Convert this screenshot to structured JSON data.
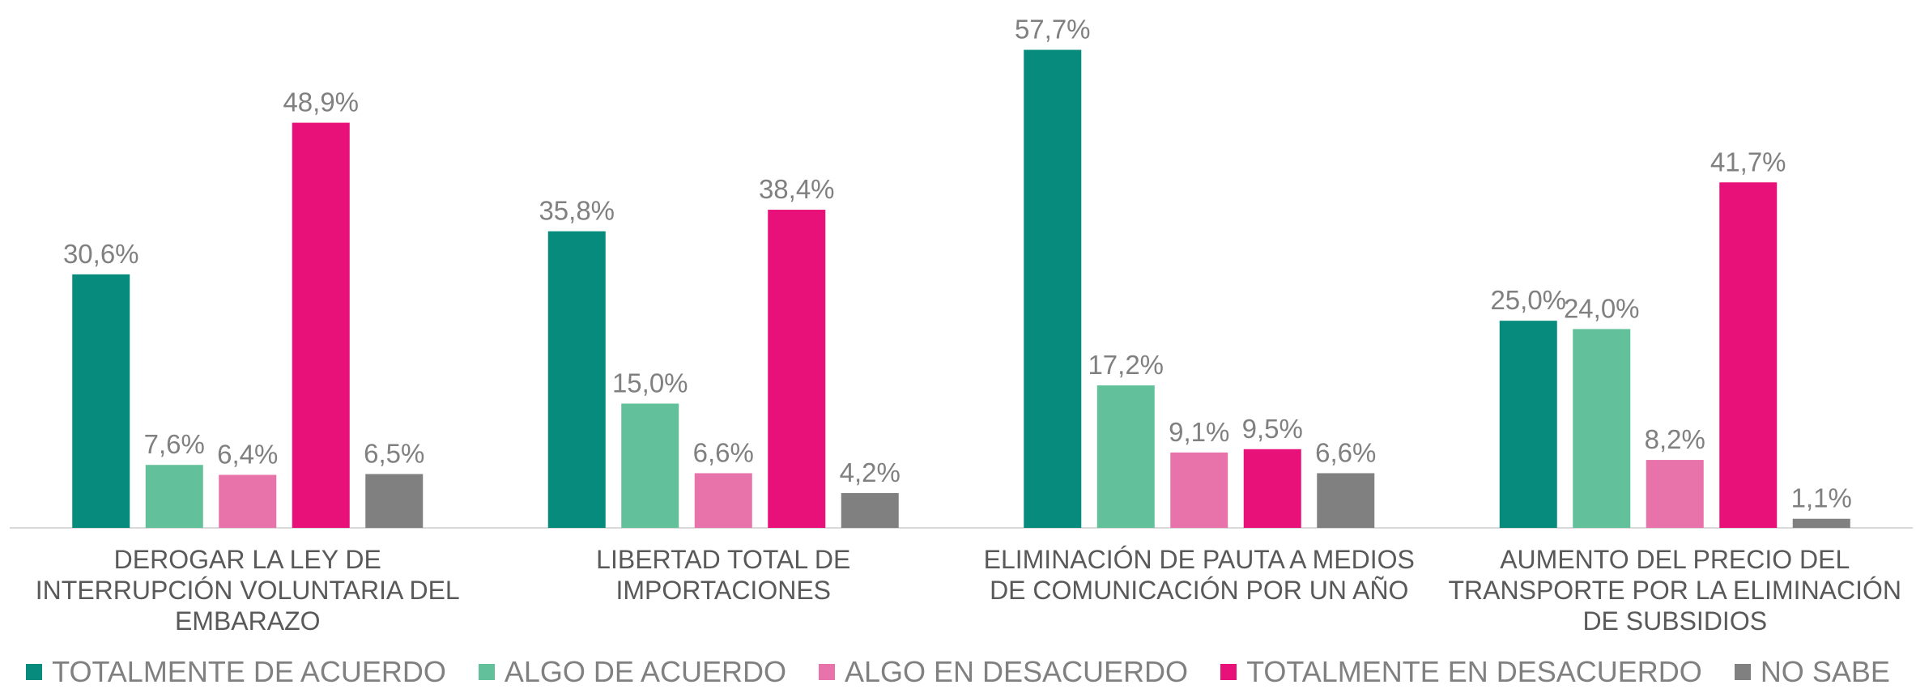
{
  "chart_data": {
    "type": "bar",
    "categories": [
      "DEROGAR LA LEY DE INTERRUPCIÓN VOLUNTARIA DEL EMBARAZO",
      "LIBERTAD TOTAL DE IMPORTACIONES",
      "ELIMINACIÓN DE PAUTA A MEDIOS DE COMUNICACIÓN POR UN AÑO",
      "AUMENTO DEL PRECIO DEL TRANSPORTE POR LA ELIMINACIÓN DE SUBSIDIOS"
    ],
    "series": [
      {
        "name": "TOTALMENTE DE ACUERDO",
        "color": "#068b7c",
        "values": [
          30.6,
          35.8,
          57.7,
          25.0
        ],
        "value_labels": [
          "30,6%",
          "35,8%",
          "57,7%",
          "25,0%"
        ]
      },
      {
        "name": "ALGO DE ACUERDO",
        "color": "#62c09a",
        "values": [
          7.6,
          15.0,
          17.2,
          24.0
        ],
        "value_labels": [
          "7,6%",
          "15,0%",
          "17,2%",
          "24,0%"
        ]
      },
      {
        "name": "ALGO EN DESACUERDO",
        "color": "#e872aa",
        "values": [
          6.4,
          6.6,
          9.1,
          8.2
        ],
        "value_labels": [
          "6,4%",
          "6,6%",
          "9,1%",
          "8,2%"
        ]
      },
      {
        "name": "TOTALMENTE EN DESACUERDO",
        "color": "#e8117a",
        "values": [
          48.9,
          38.4,
          9.5,
          41.7
        ],
        "value_labels": [
          "48,9%",
          "38,4%",
          "9,5%",
          "41,7%"
        ]
      },
      {
        "name": "NO SABE",
        "color": "#808080",
        "values": [
          6.5,
          4.2,
          6.6,
          1.1
        ],
        "value_labels": [
          "6,5%",
          "4,2%",
          "6,6%",
          "1,1%"
        ]
      }
    ],
    "ylim": [
      0,
      60
    ],
    "legend": "bottom"
  }
}
